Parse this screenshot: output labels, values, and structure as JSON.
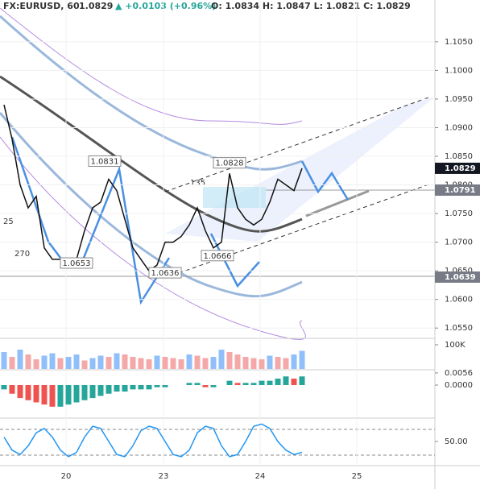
{
  "header": {
    "symbol": "FX:EURUSD, 60",
    "last": "1.0829",
    "change": "▲ +0.0103 (+0.96%)",
    "ohlc": "O: 1.0834 H: 1.0847 L: 1.0821 C: 1.0829"
  },
  "angle_labels": [
    "135",
    "135",
    "25",
    "270"
  ],
  "chart_data": [
    {
      "type": "line",
      "color": "#111111",
      "x": [
        1,
        3,
        5,
        7,
        9,
        11,
        13,
        15,
        17,
        19,
        21,
        23,
        25,
        27,
        29,
        31,
        33,
        35,
        37,
        39,
        41,
        43,
        45,
        47,
        49,
        51,
        53,
        55,
        57,
        59,
        61,
        63,
        65,
        67,
        69,
        71,
        73,
        75
      ],
      "values": [
        1.094,
        1.088,
        1.08,
        1.076,
        1.078,
        1.069,
        1.067,
        1.067,
        1.0665,
        1.067,
        1.072,
        1.076,
        1.077,
        1.081,
        1.079,
        1.074,
        1.069,
        1.067,
        1.065,
        1.066,
        1.07,
        1.07,
        1.071,
        1.073,
        1.076,
        1.072,
        1.069,
        1.07,
        1.082,
        1.076,
        1.074,
        1.073,
        1.074,
        1.077,
        1.081,
        1.08,
        1.079,
        1.0829
      ],
      "xlim": [
        0,
        108
      ],
      "ylim": [
        1.0532,
        1.1123
      ],
      "xticks": [
        {
          "value": 16.4,
          "label": "20"
        },
        {
          "value": 40.6,
          "label": "23"
        },
        {
          "value": 64.6,
          "label": "24"
        },
        {
          "value": 88.6,
          "label": "25"
        }
      ],
      "yticks": [
        {
          "value": 1.055,
          "label": "1.0550"
        },
        {
          "value": 1.06,
          "label": "1.0600"
        },
        {
          "value": 1.065,
          "label": "1.0650"
        },
        {
          "value": 1.07,
          "label": "1.0700"
        },
        {
          "value": 1.075,
          "label": "1.0750"
        },
        {
          "value": 1.08,
          "label": "1.0800"
        },
        {
          "value": 1.085,
          "label": "1.0850"
        },
        {
          "value": 1.09,
          "label": "1.0900"
        },
        {
          "value": 1.095,
          "label": "1.0950"
        },
        {
          "value": 1.1,
          "label": "1.1000"
        },
        {
          "value": 1.105,
          "label": "1.1050"
        }
      ],
      "price_tags": [
        {
          "value": 1.0829,
          "label": "1.0829",
          "color": "#131722"
        },
        {
          "value": 1.0791,
          "label": "1.0791",
          "color": "#787b86"
        },
        {
          "value": 1.0639,
          "label": "1.0639",
          "color": "#787b86"
        }
      ],
      "annotations": [
        {
          "label": "1.0831",
          "x": 26,
          "y": 1.0831
        },
        {
          "label": "1.0828",
          "x": 57,
          "y": 1.0828
        },
        {
          "label": "1.0653",
          "x": 19,
          "y": 1.0653
        },
        {
          "label": "1.0636",
          "x": 41,
          "y": 1.0636
        },
        {
          "label": "1.0666",
          "x": 54,
          "y": 1.0666
        }
      ]
    },
    {
      "type": "bar",
      "color": "#f4a9a8",
      "up_color": "#90bff9",
      "x": [
        1,
        3,
        5,
        7,
        9,
        11,
        13,
        15,
        17,
        19,
        21,
        23,
        25,
        27,
        29,
        31,
        33,
        35,
        37,
        39,
        41,
        43,
        45,
        47,
        49,
        51,
        53,
        55,
        57,
        59,
        61,
        63,
        65,
        67,
        69,
        71,
        73,
        75
      ],
      "values": [
        70000,
        50000,
        80000,
        60000,
        40000,
        55000,
        65000,
        45000,
        50000,
        60000,
        35000,
        45000,
        55000,
        50000,
        65000,
        60000,
        50000,
        45000,
        40000,
        55000,
        50000,
        45000,
        40000,
        60000,
        55000,
        45000,
        50000,
        80000,
        70000,
        60000,
        50000,
        45000,
        40000,
        55000,
        50000,
        45000,
        60000,
        75000
      ],
      "xlim": [
        0,
        108
      ],
      "ylim": [
        0,
        120000
      ],
      "yticks": [
        {
          "value": 100000,
          "label": "100K"
        }
      ]
    },
    {
      "type": "histogram-bar",
      "up_color": "#26a69a",
      "down_color": "#ef5350",
      "x": [
        1,
        3,
        5,
        7,
        9,
        11,
        13,
        15,
        17,
        19,
        21,
        23,
        25,
        27,
        29,
        31,
        33,
        35,
        37,
        39,
        41,
        43,
        45,
        47,
        49,
        51,
        53,
        55,
        57,
        59,
        61,
        63,
        65,
        67,
        69,
        71,
        73,
        75
      ],
      "values": [
        -0.002,
        -0.004,
        -0.006,
        -0.007,
        -0.008,
        -0.009,
        -0.01,
        -0.01,
        -0.009,
        -0.008,
        -0.007,
        -0.006,
        -0.005,
        -0.004,
        -0.003,
        -0.003,
        -0.002,
        -0.002,
        -0.002,
        -0.001,
        -0.001,
        0,
        0,
        0.001,
        0.001,
        -0.001,
        -0.001,
        0,
        0.002,
        0.001,
        0.001,
        0.001,
        0.002,
        0.002,
        0.003,
        0.004,
        0.003,
        0.004
      ],
      "xlim": [
        0,
        108
      ],
      "ylim": [
        -0.0149,
        0.0067
      ],
      "yticks": [
        {
          "value": 0.0056,
          "label": "0.0056"
        },
        {
          "value": 0,
          "label": "0.0000"
        }
      ]
    },
    {
      "type": "line",
      "color": "#2196f3",
      "x": [
        1,
        3,
        5,
        7,
        9,
        11,
        13,
        15,
        17,
        19,
        21,
        23,
        25,
        27,
        29,
        31,
        33,
        35,
        37,
        39,
        41,
        43,
        45,
        47,
        49,
        51,
        53,
        55,
        57,
        59,
        61,
        63,
        65,
        67,
        69,
        71,
        73,
        75
      ],
      "values": [
        60,
        30,
        20,
        40,
        70,
        80,
        60,
        30,
        15,
        25,
        60,
        85,
        80,
        50,
        20,
        15,
        40,
        75,
        85,
        80,
        50,
        20,
        15,
        30,
        70,
        85,
        80,
        40,
        15,
        20,
        50,
        85,
        90,
        80,
        50,
        30,
        20,
        25
      ],
      "xlim": [
        0,
        108
      ],
      "ylim": [
        0,
        100
      ],
      "yticks": [
        {
          "value": 50,
          "label": "50.00"
        }
      ]
    }
  ]
}
